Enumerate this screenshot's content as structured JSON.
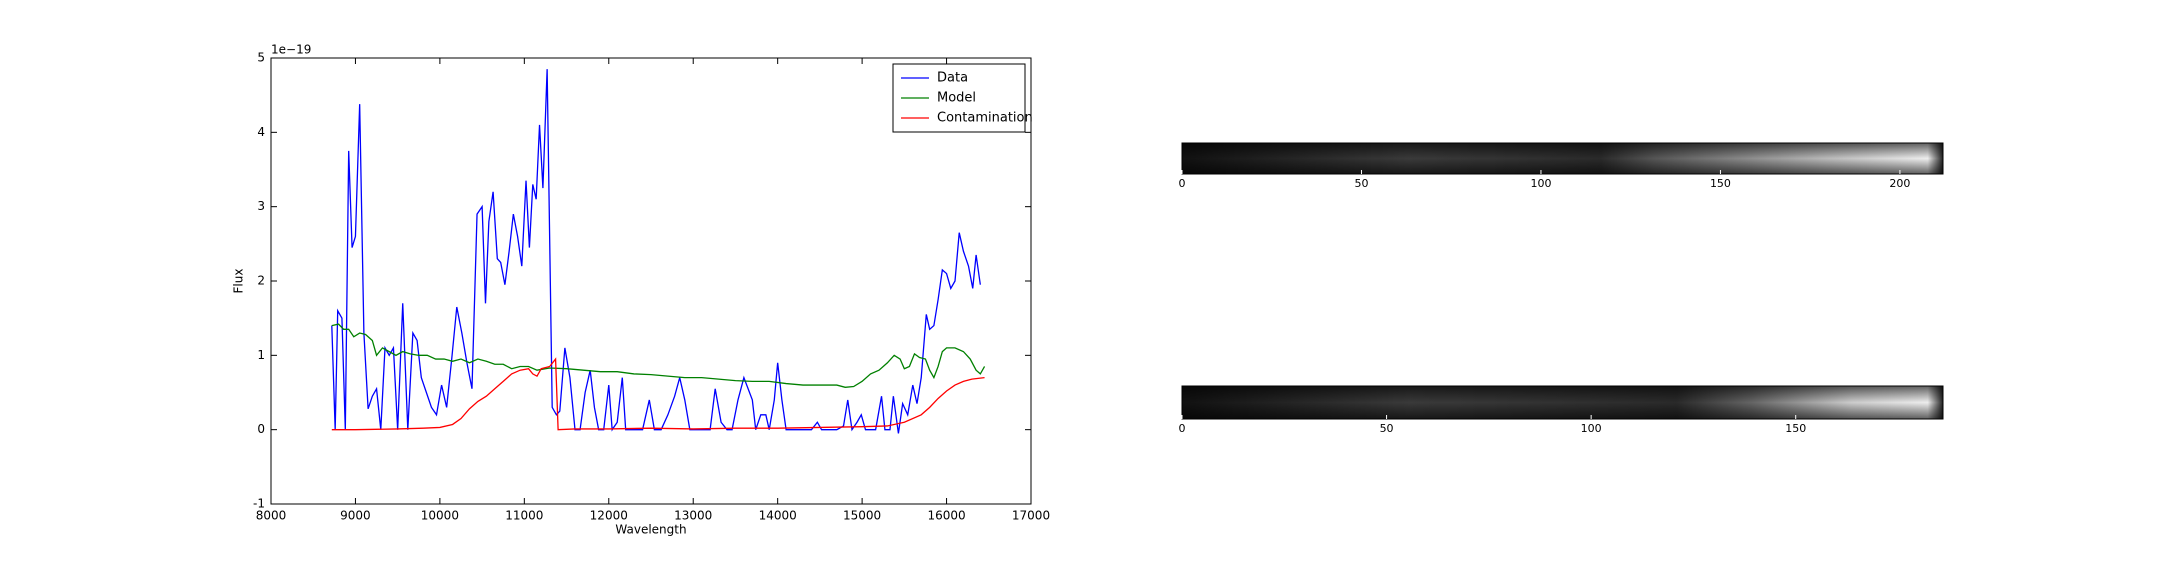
{
  "chart_data": [
    {
      "type": "line",
      "y_offset_label": "1e−19",
      "xlabel": "Wavelength",
      "ylabel": "Flux",
      "xlim": [
        8000,
        17000
      ],
      "xticks": [
        8000,
        9000,
        10000,
        11000,
        12000,
        13000,
        14000,
        15000,
        16000,
        17000
      ],
      "ylim": [
        -1,
        5
      ],
      "yticks": [
        -1,
        0,
        1,
        2,
        3,
        4,
        5
      ],
      "legend": "upper right",
      "series": [
        {
          "name": "Data",
          "color": "#0000ff",
          "x": [
            8720,
            8760,
            8790,
            8840,
            8880,
            8920,
            8960,
            9000,
            9050,
            9100,
            9150,
            9200,
            9250,
            9300,
            9350,
            9400,
            9450,
            9500,
            9560,
            9620,
            9680,
            9730,
            9780,
            9840,
            9900,
            9960,
            10020,
            10080,
            10140,
            10200,
            10260,
            10320,
            10380,
            10440,
            10500,
            10540,
            10580,
            10630,
            10680,
            10720,
            10770,
            10820,
            10870,
            10920,
            10970,
            11020,
            11060,
            11100,
            11140,
            11180,
            11220,
            11270,
            11330,
            11380,
            11420,
            11480,
            11540,
            11600,
            11660,
            11720,
            11780,
            11830,
            11880,
            11940,
            12000,
            12040,
            12100,
            12160,
            12200,
            12300,
            12400,
            12480,
            12540,
            12620,
            12700,
            12780,
            12840,
            12900,
            12960,
            13040,
            13120,
            13200,
            13260,
            13330,
            13400,
            13460,
            13530,
            13600,
            13650,
            13700,
            13740,
            13800,
            13860,
            13900,
            13960,
            14000,
            14050,
            14100,
            14200,
            14300,
            14400,
            14470,
            14520,
            14600,
            14700,
            14780,
            14830,
            14880,
            14940,
            14990,
            15040,
            15100,
            15160,
            15230,
            15270,
            15330,
            15370,
            15430,
            15480,
            15540,
            15600,
            15650,
            15700,
            15760,
            15800,
            15850,
            15900,
            15950,
            16000,
            16050,
            16100,
            16150,
            16200,
            16260,
            16310,
            16350,
            16400
          ],
          "values": [
            1.4,
            0.0,
            1.6,
            1.5,
            0.0,
            3.75,
            2.45,
            2.6,
            4.38,
            1.3,
            0.28,
            0.45,
            0.55,
            0.0,
            1.1,
            1.0,
            1.1,
            0.0,
            1.7,
            0.0,
            1.3,
            1.2,
            0.7,
            0.5,
            0.3,
            0.2,
            0.6,
            0.3,
            0.95,
            1.65,
            1.3,
            0.9,
            0.55,
            2.9,
            3.0,
            1.7,
            2.8,
            3.2,
            2.3,
            2.25,
            1.95,
            2.4,
            2.9,
            2.6,
            2.2,
            3.35,
            2.45,
            3.3,
            3.1,
            4.1,
            3.25,
            4.85,
            0.3,
            0.2,
            0.25,
            1.1,
            0.7,
            0.0,
            0.0,
            0.5,
            0.8,
            0.3,
            0.0,
            0.0,
            0.6,
            0.0,
            0.1,
            0.7,
            0.0,
            0.0,
            0.0,
            0.4,
            0.0,
            0.0,
            0.2,
            0.45,
            0.7,
            0.4,
            0.0,
            0.0,
            0.0,
            0.0,
            0.55,
            0.1,
            0.0,
            0.0,
            0.4,
            0.7,
            0.55,
            0.4,
            0.0,
            0.2,
            0.2,
            0.0,
            0.4,
            0.9,
            0.4,
            0.0,
            0.0,
            0.0,
            0.0,
            0.1,
            0.0,
            0.0,
            0.0,
            0.05,
            0.4,
            0.0,
            0.1,
            0.2,
            0.0,
            0.0,
            0.0,
            0.45,
            0.0,
            0.0,
            0.45,
            -0.05,
            0.35,
            0.2,
            0.6,
            0.35,
            0.7,
            1.55,
            1.35,
            1.4,
            1.75,
            2.15,
            2.1,
            1.9,
            2.0,
            2.65,
            2.4,
            2.2,
            1.9,
            2.35,
            1.95
          ]
        },
        {
          "name": "Model",
          "color": "#008000",
          "x": [
            8720,
            8800,
            8860,
            8920,
            8980,
            9050,
            9120,
            9200,
            9250,
            9320,
            9400,
            9480,
            9560,
            9650,
            9750,
            9850,
            9950,
            10050,
            10150,
            10250,
            10350,
            10450,
            10550,
            10650,
            10750,
            10850,
            10950,
            11050,
            11150,
            11300,
            11500,
            11700,
            11900,
            12100,
            12300,
            12500,
            12700,
            12900,
            13100,
            13300,
            13500,
            13700,
            13900,
            14100,
            14300,
            14500,
            14700,
            14800,
            14900,
            15000,
            15100,
            15200,
            15300,
            15380,
            15450,
            15500,
            15560,
            15620,
            15680,
            15750,
            15800,
            15850,
            15900,
            15950,
            16000,
            16100,
            16200,
            16280,
            16350,
            16400,
            16450
          ],
          "values": [
            1.4,
            1.42,
            1.35,
            1.35,
            1.25,
            1.3,
            1.28,
            1.2,
            1.0,
            1.1,
            1.05,
            1.0,
            1.05,
            1.02,
            1.0,
            1.0,
            0.95,
            0.95,
            0.92,
            0.95,
            0.9,
            0.95,
            0.92,
            0.88,
            0.88,
            0.82,
            0.85,
            0.85,
            0.8,
            0.83,
            0.82,
            0.8,
            0.78,
            0.78,
            0.75,
            0.74,
            0.72,
            0.7,
            0.7,
            0.68,
            0.66,
            0.65,
            0.65,
            0.62,
            0.6,
            0.6,
            0.6,
            0.57,
            0.58,
            0.65,
            0.75,
            0.8,
            0.9,
            1.0,
            0.95,
            0.82,
            0.85,
            1.02,
            0.97,
            0.95,
            0.8,
            0.7,
            0.85,
            1.05,
            1.1,
            1.1,
            1.05,
            0.95,
            0.8,
            0.75,
            0.85
          ]
        },
        {
          "name": "Contamination",
          "color": "#ff0000",
          "x": [
            8720,
            9000,
            9500,
            9800,
            10000,
            10150,
            10250,
            10350,
            10450,
            10550,
            10650,
            10750,
            10850,
            10950,
            11050,
            11100,
            11150,
            11200,
            11300,
            11370,
            11400,
            11600,
            12000,
            12500,
            13000,
            13500,
            14000,
            14500,
            15000,
            15300,
            15500,
            15700,
            15800,
            15900,
            16000,
            16100,
            16200,
            16300,
            16450
          ],
          "values": [
            0.0,
            0.0,
            0.01,
            0.02,
            0.03,
            0.07,
            0.15,
            0.28,
            0.38,
            0.45,
            0.55,
            0.65,
            0.75,
            0.8,
            0.82,
            0.75,
            0.72,
            0.82,
            0.85,
            0.95,
            0.0,
            0.01,
            0.01,
            0.02,
            0.01,
            0.02,
            0.02,
            0.03,
            0.04,
            0.05,
            0.1,
            0.2,
            0.3,
            0.42,
            0.52,
            0.6,
            0.65,
            0.68,
            0.7
          ]
        }
      ]
    },
    {
      "type": "image",
      "xlim": [
        0,
        212
      ],
      "xticks": [
        0,
        50,
        100,
        150,
        200
      ]
    },
    {
      "type": "image",
      "xlim": [
        0,
        186
      ],
      "xticks": [
        0,
        50,
        100,
        150
      ]
    }
  ]
}
